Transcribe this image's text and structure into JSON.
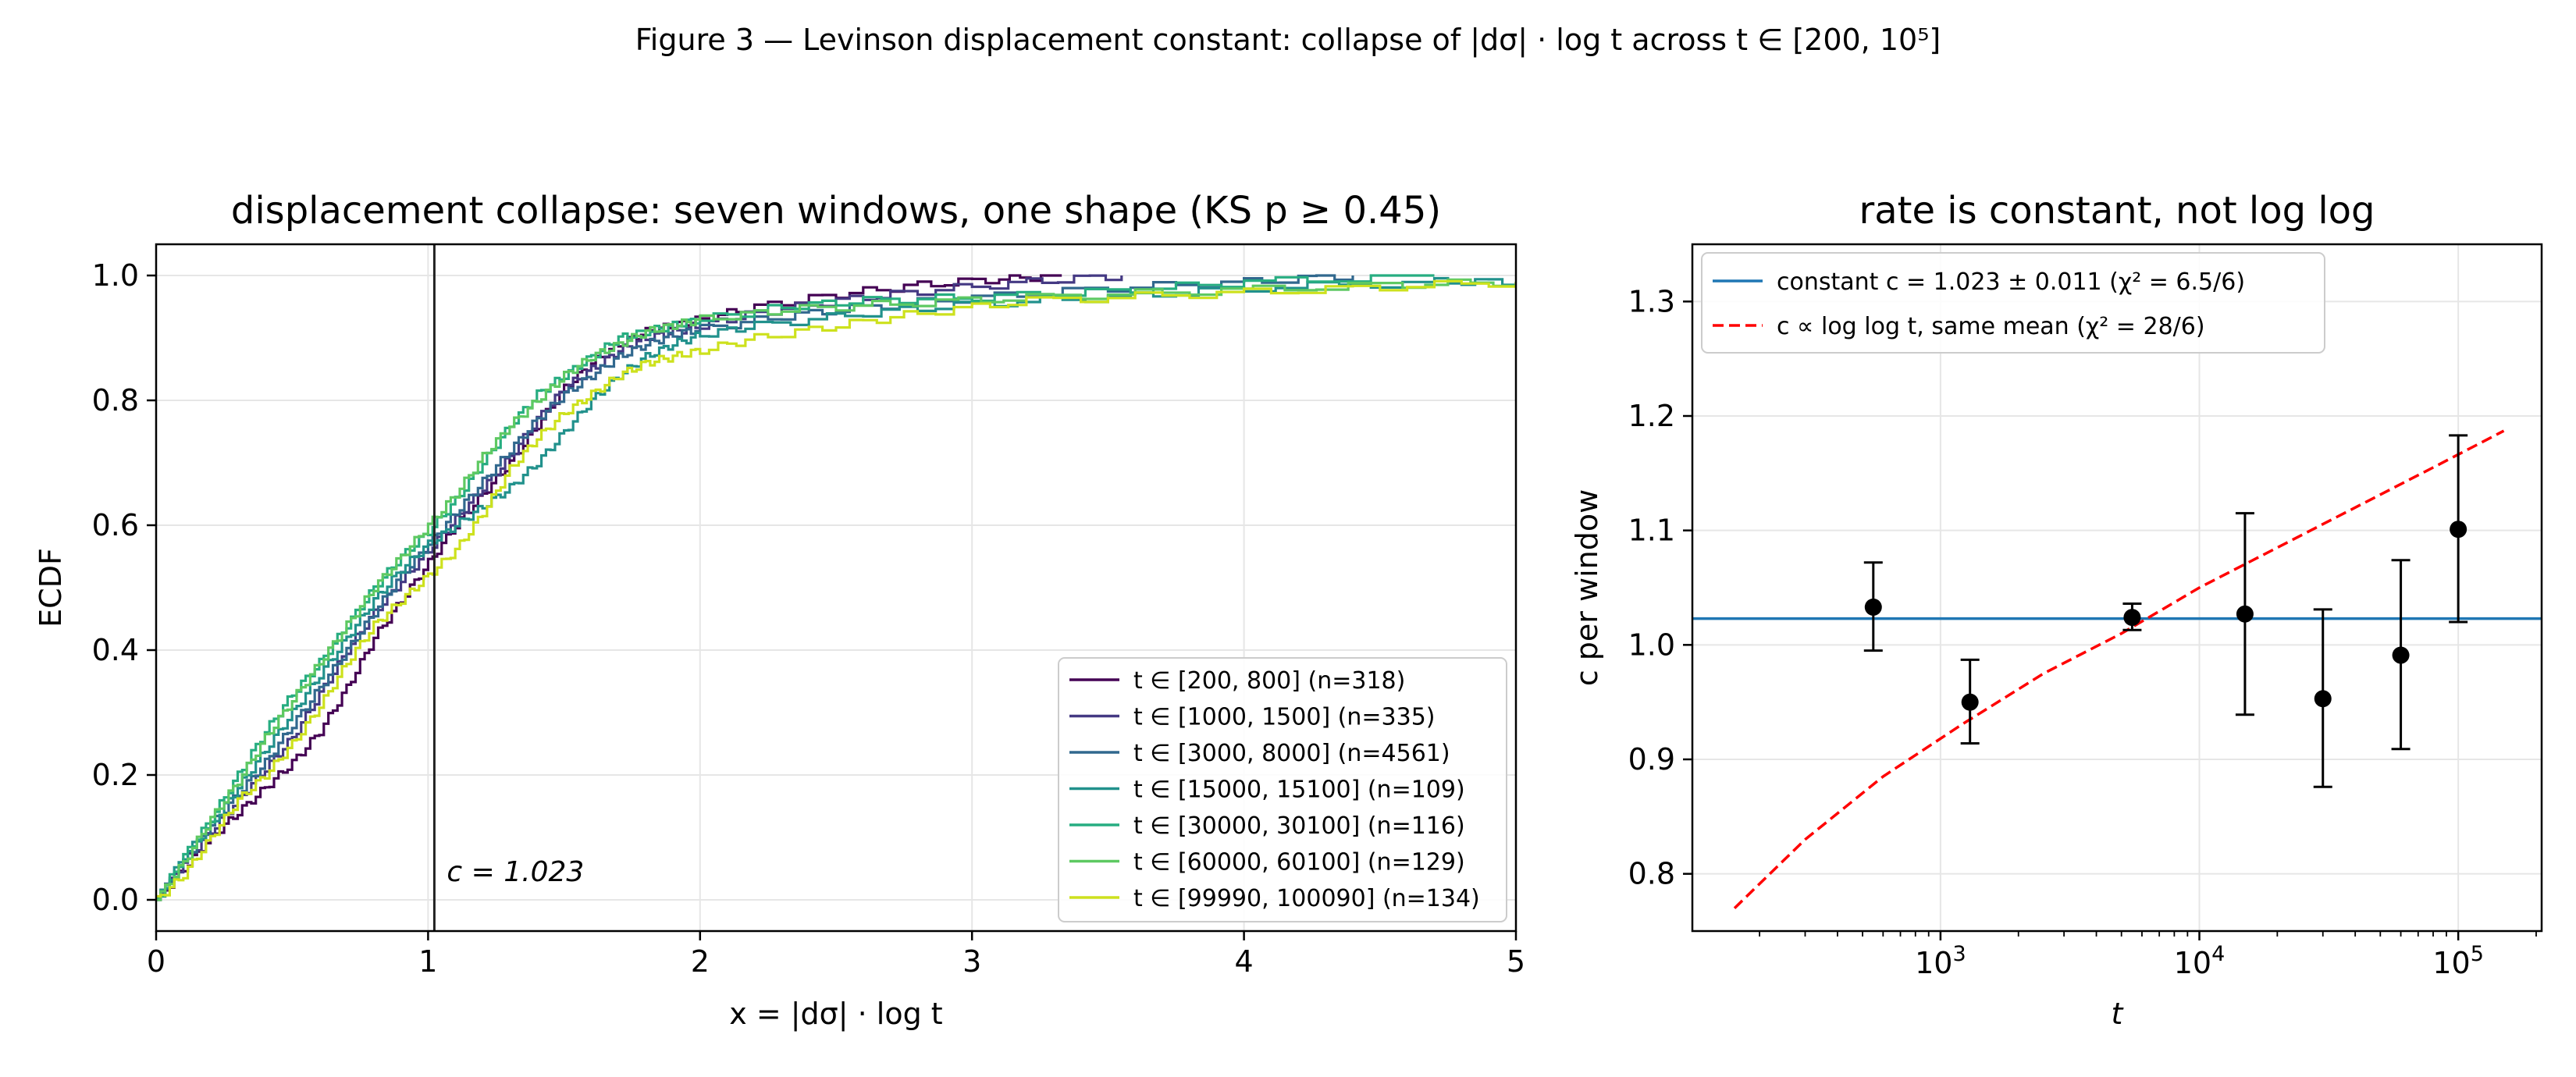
{
  "figure": {
    "title": "Figure 3 — Levinson displacement constant: collapse of |dσ| · log t across t ∈ [200, 10⁵]"
  },
  "chart_data": [
    {
      "type": "line",
      "subtype": "ecdf",
      "title": "displacement collapse: seven windows, one shape (KS p ≥ 0.45)",
      "xlabel": "x = |dσ| · log t",
      "ylabel": "ECDF",
      "xlim": [
        0,
        5
      ],
      "ylim": [
        -0.05,
        1.05
      ],
      "xticks": [
        "0",
        "1",
        "2",
        "3",
        "4",
        "5"
      ],
      "yticks": [
        "0.0",
        "0.2",
        "0.4",
        "0.6",
        "0.8",
        "1.0"
      ],
      "grid": true,
      "legend_position": "lower-right",
      "vline": {
        "x": 1.023,
        "label": "c = 1.023",
        "color": "#222222"
      },
      "series": [
        {
          "name": "t ∈ [200, 800]  (n=318)",
          "color": "#440154",
          "xmax": 3.33,
          "x": [
            0,
            0.1,
            0.2,
            0.3,
            0.4,
            0.5,
            0.6,
            0.7,
            0.8,
            0.9,
            1.0,
            1.1,
            1.2,
            1.3,
            1.4,
            1.5,
            1.6,
            1.7,
            1.8,
            1.9,
            2.0,
            2.2,
            2.5,
            2.8,
            3.1,
            3.33
          ],
          "y": [
            0.0,
            0.05,
            0.1,
            0.14,
            0.18,
            0.22,
            0.27,
            0.34,
            0.42,
            0.48,
            0.54,
            0.6,
            0.65,
            0.7,
            0.76,
            0.82,
            0.86,
            0.89,
            0.91,
            0.92,
            0.93,
            0.95,
            0.97,
            0.985,
            0.995,
            1.0
          ]
        },
        {
          "name": "t ∈ [1000, 1500]  (n=335)",
          "color": "#443983",
          "xmax": 3.55,
          "x": [
            0,
            0.1,
            0.2,
            0.3,
            0.4,
            0.5,
            0.6,
            0.7,
            0.8,
            0.9,
            1.0,
            1.1,
            1.2,
            1.3,
            1.4,
            1.5,
            1.6,
            1.7,
            1.8,
            1.9,
            2.0,
            2.2,
            2.5,
            2.8,
            3.2,
            3.55
          ],
          "y": [
            0.0,
            0.06,
            0.11,
            0.16,
            0.21,
            0.26,
            0.33,
            0.4,
            0.46,
            0.51,
            0.56,
            0.61,
            0.66,
            0.71,
            0.77,
            0.82,
            0.85,
            0.88,
            0.9,
            0.91,
            0.92,
            0.94,
            0.96,
            0.975,
            0.99,
            1.0
          ]
        },
        {
          "name": "t ∈ [3000, 8000]  (n=4561)",
          "color": "#31688e",
          "xmax": 4.4,
          "x": [
            0,
            0.1,
            0.2,
            0.3,
            0.4,
            0.5,
            0.6,
            0.7,
            0.8,
            0.9,
            1.0,
            1.1,
            1.2,
            1.3,
            1.4,
            1.5,
            1.6,
            1.7,
            1.8,
            1.9,
            2.0,
            2.3,
            2.6,
            3.0,
            3.5,
            4.0,
            4.4
          ],
          "y": [
            0.0,
            0.06,
            0.12,
            0.17,
            0.22,
            0.28,
            0.34,
            0.4,
            0.46,
            0.52,
            0.57,
            0.62,
            0.67,
            0.72,
            0.77,
            0.81,
            0.84,
            0.87,
            0.89,
            0.905,
            0.915,
            0.935,
            0.95,
            0.965,
            0.98,
            0.99,
            1.0
          ]
        },
        {
          "name": "t ∈ [15000, 15100]  (n=109)",
          "color": "#21918c",
          "xmax": 5.0,
          "x": [
            0,
            0.1,
            0.2,
            0.3,
            0.4,
            0.5,
            0.6,
            0.7,
            0.8,
            0.9,
            1.0,
            1.1,
            1.2,
            1.3,
            1.4,
            1.5,
            1.6,
            1.7,
            1.8,
            1.9,
            2.0,
            2.2,
            2.6,
            3.0,
            3.5,
            4.0,
            4.7,
            5.0
          ],
          "y": [
            0.0,
            0.07,
            0.12,
            0.18,
            0.24,
            0.3,
            0.36,
            0.42,
            0.48,
            0.53,
            0.57,
            0.6,
            0.63,
            0.66,
            0.7,
            0.75,
            0.8,
            0.84,
            0.87,
            0.89,
            0.905,
            0.92,
            0.94,
            0.955,
            0.965,
            0.98,
            0.99,
            0.99
          ]
        },
        {
          "name": "t ∈ [30000, 30100]  (n=116)",
          "color": "#27ad81",
          "xmax": 4.7,
          "x": [
            0,
            0.1,
            0.2,
            0.3,
            0.4,
            0.5,
            0.6,
            0.7,
            0.8,
            0.9,
            1.0,
            1.1,
            1.2,
            1.3,
            1.4,
            1.5,
            1.6,
            1.7,
            1.8,
            1.9,
            2.0,
            2.3,
            2.6,
            3.0,
            3.5,
            4.0,
            4.7
          ],
          "y": [
            0.0,
            0.07,
            0.13,
            0.2,
            0.27,
            0.33,
            0.38,
            0.44,
            0.5,
            0.55,
            0.59,
            0.64,
            0.7,
            0.76,
            0.81,
            0.84,
            0.87,
            0.9,
            0.91,
            0.92,
            0.93,
            0.95,
            0.96,
            0.965,
            0.975,
            0.99,
            1.0
          ]
        },
        {
          "name": "t ∈ [60000, 60100]  (n=129)",
          "color": "#5ec962",
          "xmax": 5.0,
          "x": [
            0,
            0.1,
            0.2,
            0.3,
            0.4,
            0.5,
            0.6,
            0.7,
            0.8,
            0.9,
            1.0,
            1.1,
            1.2,
            1.3,
            1.4,
            1.5,
            1.6,
            1.7,
            1.8,
            1.9,
            2.0,
            2.3,
            2.7,
            3.2,
            3.8,
            4.5,
            5.0
          ],
          "y": [
            0.0,
            0.06,
            0.13,
            0.19,
            0.26,
            0.32,
            0.38,
            0.44,
            0.5,
            0.55,
            0.6,
            0.65,
            0.71,
            0.76,
            0.8,
            0.84,
            0.87,
            0.89,
            0.91,
            0.92,
            0.93,
            0.945,
            0.955,
            0.965,
            0.975,
            0.985,
            0.99
          ]
        },
        {
          "name": "t ∈ [99990, 100090]  (n=134)",
          "color": "#cde11d",
          "xmax": 5.0,
          "x": [
            0,
            0.1,
            0.2,
            0.3,
            0.4,
            0.5,
            0.6,
            0.7,
            0.8,
            0.9,
            1.0,
            1.1,
            1.2,
            1.3,
            1.4,
            1.5,
            1.6,
            1.7,
            1.8,
            1.9,
            2.0,
            2.2,
            2.5,
            2.8,
            3.2,
            3.8,
            4.4,
            5.0
          ],
          "y": [
            0.0,
            0.04,
            0.1,
            0.16,
            0.2,
            0.25,
            0.31,
            0.38,
            0.44,
            0.48,
            0.52,
            0.56,
            0.62,
            0.69,
            0.74,
            0.78,
            0.81,
            0.84,
            0.86,
            0.87,
            0.88,
            0.9,
            0.92,
            0.94,
            0.96,
            0.97,
            0.98,
            0.99
          ]
        }
      ]
    },
    {
      "type": "scatter",
      "title": "rate is constant, not log log",
      "xlabel": "t",
      "ylabel": "c per window",
      "xscale": "log",
      "xlim": [
        110,
        210000
      ],
      "ylim": [
        0.75,
        1.35
      ],
      "xticks": [
        {
          "value": 1000,
          "base": "10",
          "exp": "3"
        },
        {
          "value": 10000,
          "base": "10",
          "exp": "4"
        },
        {
          "value": 100000,
          "base": "10",
          "exp": "5"
        }
      ],
      "yticks": [
        "0.8",
        "0.9",
        "1.0",
        "1.1",
        "1.2",
        "1.3"
      ],
      "grid": true,
      "legend_position": "upper-left",
      "points": {
        "color": "#000000",
        "x": [
          550,
          1300,
          5500,
          15000,
          30000,
          60000,
          100000
        ],
        "y": [
          1.033,
          0.95,
          1.024,
          1.027,
          0.953,
          0.991,
          1.101
        ],
        "yerr_low": [
          0.995,
          0.914,
          1.013,
          0.939,
          0.876,
          0.909,
          1.02
        ],
        "yerr_high": [
          1.072,
          0.987,
          1.036,
          1.115,
          1.031,
          1.074,
          1.183
        ]
      },
      "lines": [
        {
          "name": "constant c = 1.023 ± 0.011  (χ² = 6.5/6)",
          "color": "#1f77b4",
          "style": "solid",
          "x": [
            110,
            210000
          ],
          "y": [
            1.023,
            1.023
          ]
        },
        {
          "name": "c ∝ log log t, same mean  (χ² = 28/6)",
          "color": "#ff0000",
          "style": "dashed",
          "x": [
            160,
            300,
            600,
            1200,
            2500,
            5000,
            10000,
            20000,
            40000,
            80000,
            150000
          ],
          "y": [
            0.77,
            0.83,
            0.885,
            0.93,
            0.975,
            1.01,
            1.05,
            1.085,
            1.12,
            1.155,
            1.187
          ]
        }
      ]
    }
  ]
}
